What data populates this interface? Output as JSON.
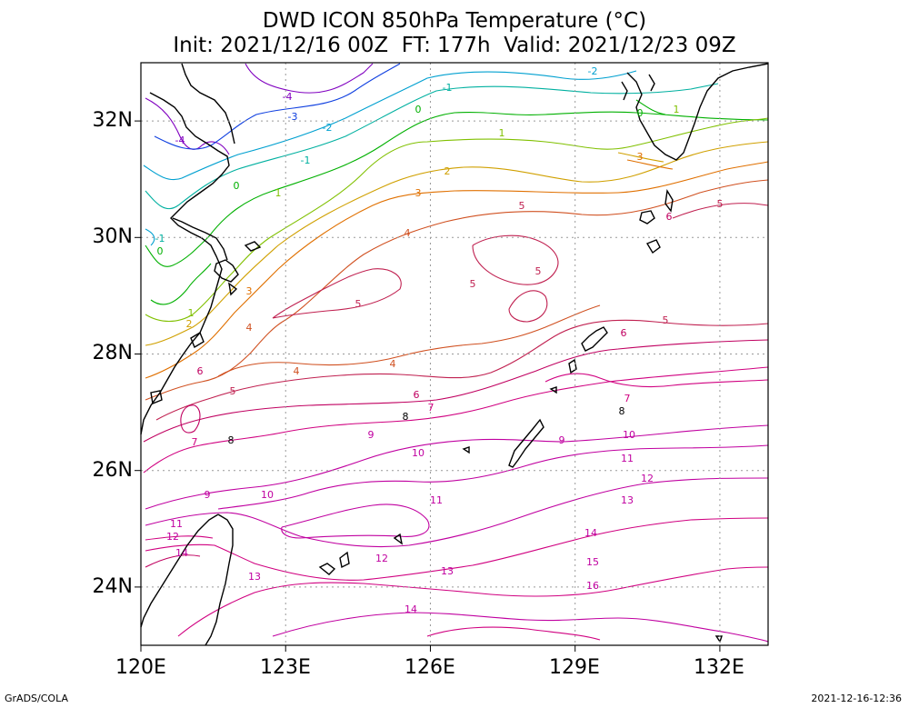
{
  "title": {
    "line1": "DWD ICON 850hPa Temperature (°C)",
    "line2": "Init: 2021/12/16 00Z  FT: 177h  Valid: 2021/12/23 09Z"
  },
  "axes": {
    "lat_labels": [
      "32N",
      "30N",
      "28N",
      "26N",
      "24N"
    ],
    "lon_labels": [
      "120E",
      "123E",
      "126E",
      "129E",
      "132E"
    ],
    "lat_values": [
      32,
      30,
      28,
      26,
      24
    ],
    "lon_values": [
      120,
      123,
      126,
      129,
      132
    ],
    "lat_range": [
      23,
      33
    ],
    "lon_range": [
      120,
      133
    ]
  },
  "contour_labels": [
    "-4",
    "-4",
    "-3",
    "-2",
    "-2",
    "-1",
    "-1",
    "-1",
    "0",
    "0",
    "0",
    "0",
    "1",
    "1",
    "1",
    "1",
    "2",
    "2",
    "3",
    "3",
    "3",
    "4",
    "4",
    "4",
    "4",
    "5",
    "5",
    "5",
    "5",
    "5",
    "5",
    "5",
    "6",
    "6",
    "6",
    "6",
    "7",
    "7",
    "7",
    "8",
    "8",
    "8",
    "9",
    "9",
    "9",
    "10",
    "10",
    "10",
    "11",
    "11",
    "11",
    "12",
    "12",
    "12",
    "13",
    "13",
    "13",
    "14",
    "14",
    "14",
    "15",
    "16"
  ],
  "footer": {
    "left": "GrADS/COLA",
    "right": "2021-12-16-12:36"
  },
  "colors": {
    "minus4": "#8000c0",
    "minus3": "#1040e0",
    "minus2": "#00a0d0",
    "minus1": "#00b0a0",
    "zero": "#00b000",
    "one": "#80c000",
    "two": "#d0a000",
    "three": "#e07000",
    "four": "#d05020",
    "five": "#c02050",
    "six": "#c00060",
    "seven": "#d00080",
    "warm": "#c000a0",
    "coast": "#000000",
    "grid": "#999999"
  }
}
